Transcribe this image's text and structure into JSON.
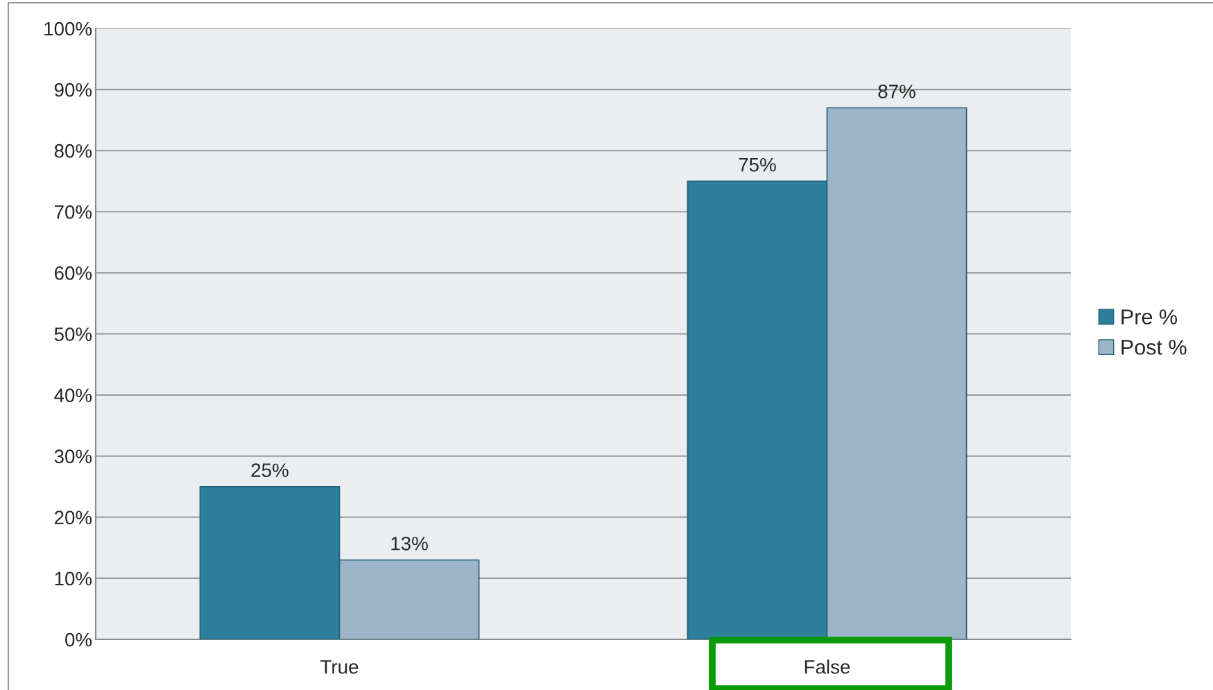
{
  "chart_data": {
    "type": "bar",
    "categories": [
      "True",
      "False"
    ],
    "series": [
      {
        "name": "Pre %",
        "color": "#2e7f9c",
        "values": [
          25,
          75
        ],
        "value_labels": [
          "25%",
          "75%"
        ]
      },
      {
        "name": "Post %",
        "color": "#9db5c8",
        "values": [
          13,
          87
        ],
        "value_labels": [
          "13%",
          "87%"
        ]
      }
    ],
    "ylim": [
      0,
      100
    ],
    "yticks": [
      {
        "value": 0,
        "label": "0%"
      },
      {
        "value": 10,
        "label": "10%"
      },
      {
        "value": 20,
        "label": "20%"
      },
      {
        "value": 30,
        "label": "30%"
      },
      {
        "value": 40,
        "label": "40%"
      },
      {
        "value": 50,
        "label": "50%"
      },
      {
        "value": 60,
        "label": "60%"
      },
      {
        "value": 70,
        "label": "70%"
      },
      {
        "value": 80,
        "label": "80%"
      },
      {
        "value": 90,
        "label": "90%"
      },
      {
        "value": 100,
        "label": "100%"
      }
    ],
    "grid": "y",
    "legend": "right"
  }
}
